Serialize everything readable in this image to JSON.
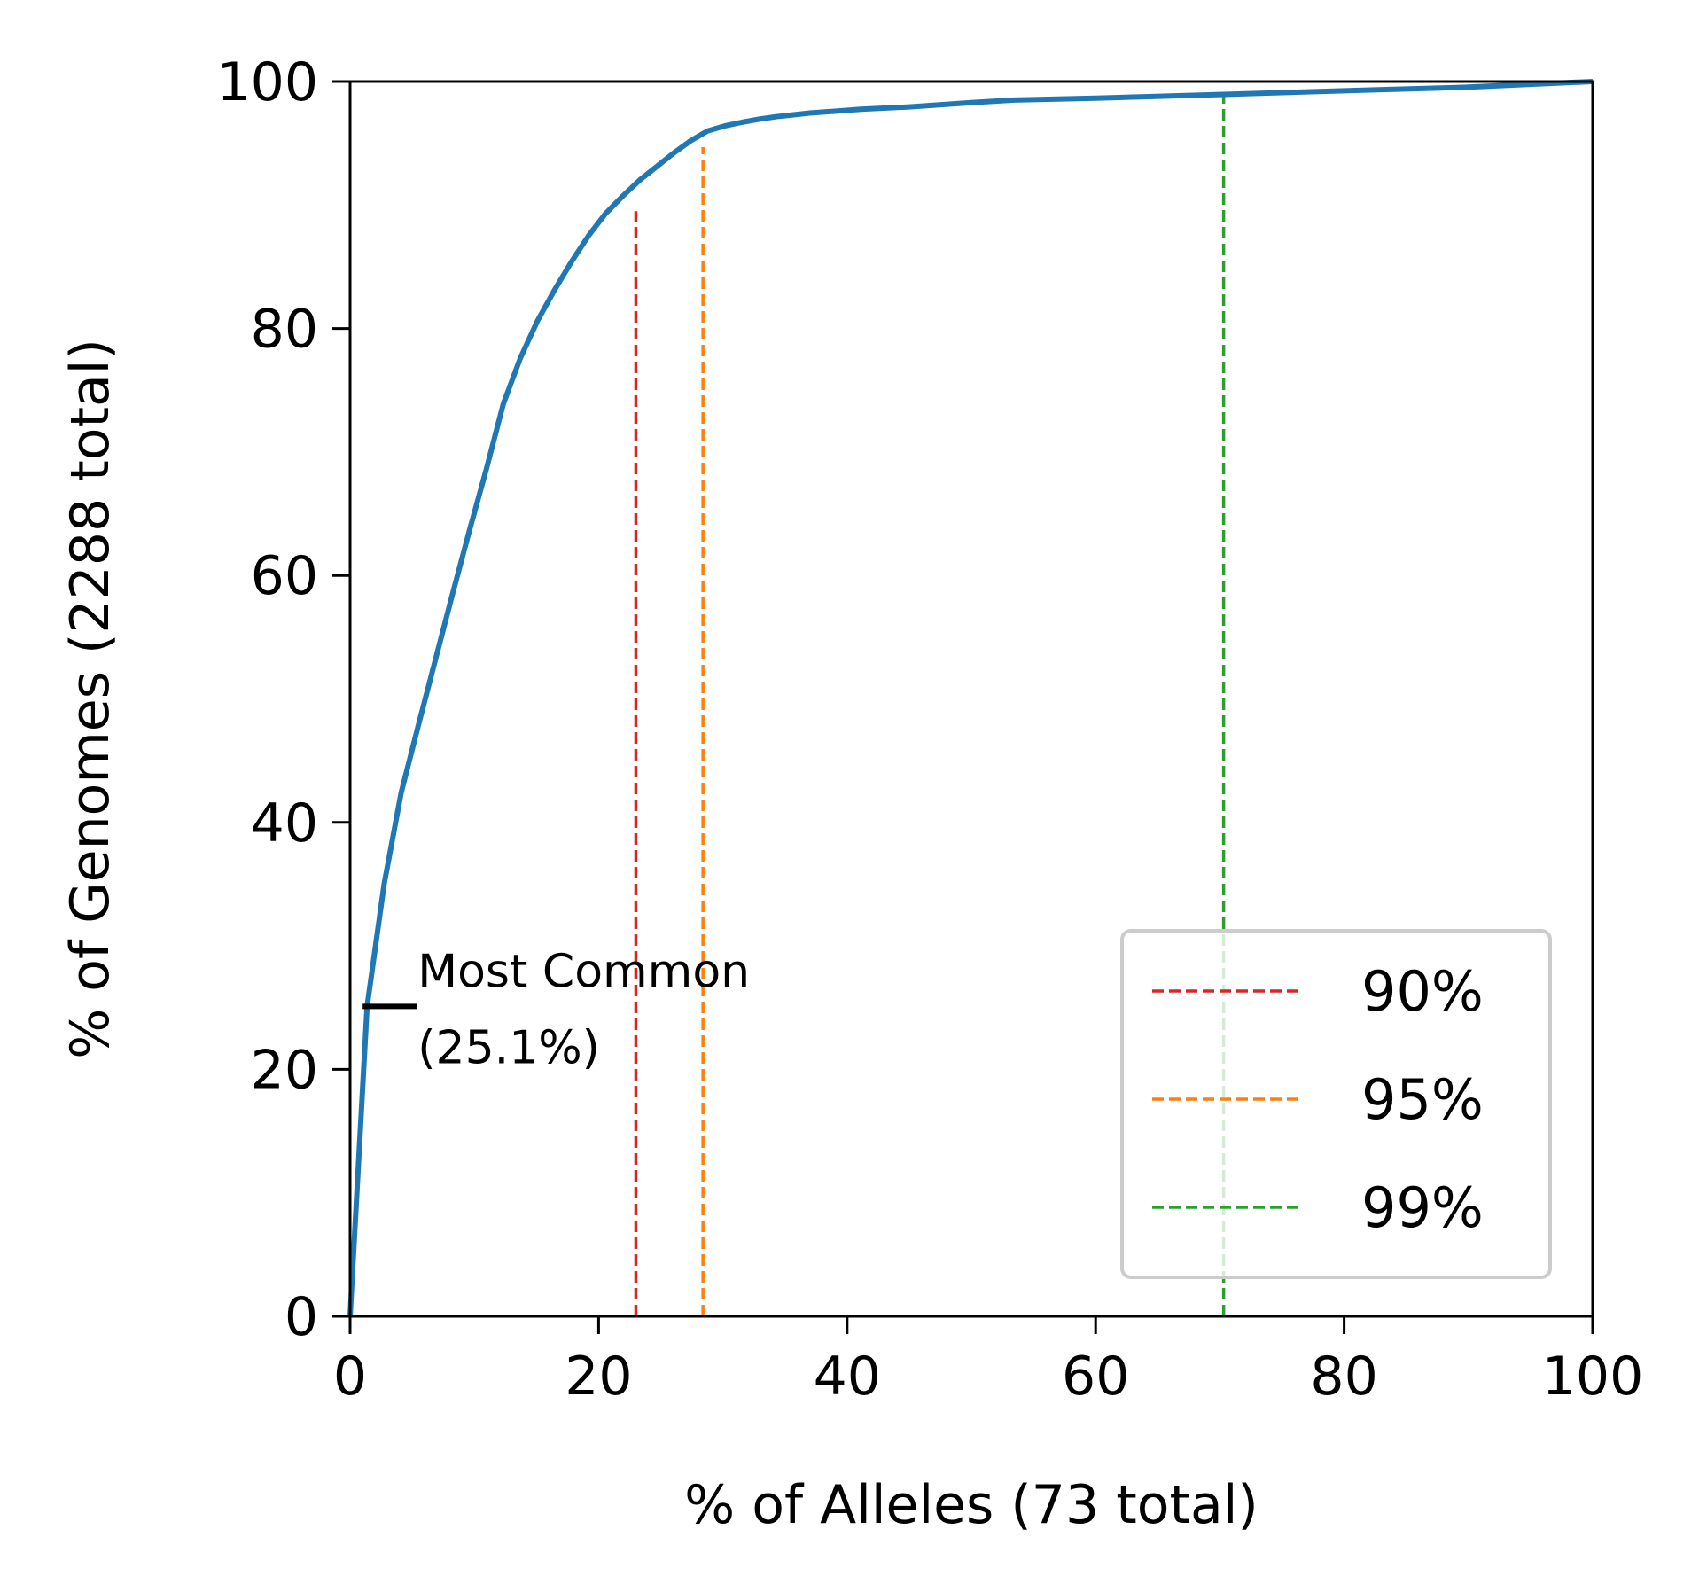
{
  "chart_data": {
    "type": "line",
    "xlabel": "% of Alleles (73 total)",
    "ylabel": "% of Genomes (2288 total)",
    "xlim": [
      0,
      100
    ],
    "ylim": [
      0,
      100
    ],
    "xticks": [
      "0",
      "20",
      "40",
      "60",
      "80",
      "100"
    ],
    "yticks": [
      "0",
      "20",
      "40",
      "60",
      "80",
      "100"
    ],
    "grid": false,
    "legend_position": "lower-right",
    "series": [
      {
        "color": "#1f77b4",
        "x": [
          0,
          1.37,
          2.74,
          4.11,
          5.48,
          6.85,
          8.22,
          9.59,
          10.96,
          12.33,
          13.7,
          15.07,
          16.44,
          17.81,
          19.18,
          20.55,
          21.92,
          23.29,
          24.66,
          26.03,
          27.4,
          28.77,
          30.14,
          31.51,
          32.88,
          34.25,
          35.62,
          36.99,
          38.36,
          39.73,
          41.1,
          45.0,
          50.0,
          53.42,
          60.0,
          70.0,
          80.0,
          90.0,
          100
        ],
        "y": [
          0,
          25.1,
          35.0,
          42.4,
          47.8,
          53.1,
          58.4,
          63.6,
          68.6,
          73.9,
          77.6,
          80.6,
          83.1,
          85.4,
          87.5,
          89.3,
          90.7,
          92.0,
          93.1,
          94.2,
          95.2,
          96.0,
          96.4,
          96.7,
          96.95,
          97.15,
          97.3,
          97.45,
          97.55,
          97.65,
          97.75,
          97.95,
          98.3,
          98.5,
          98.65,
          98.95,
          99.25,
          99.55,
          100
        ]
      }
    ],
    "thresholds": [
      {
        "label": "90%",
        "x": 23.0,
        "y": 89.5,
        "color": "#d62728"
      },
      {
        "label": "95%",
        "x": 28.4,
        "y": 94.7,
        "color": "#ff7f0e"
      },
      {
        "label": "99%",
        "x": 70.3,
        "y": 99.1,
        "color": "#2ca02c"
      }
    ],
    "annotation": {
      "lines": [
        "Most Common",
        "(25.1%)"
      ],
      "x": 1.37,
      "y": 25.1
    }
  }
}
